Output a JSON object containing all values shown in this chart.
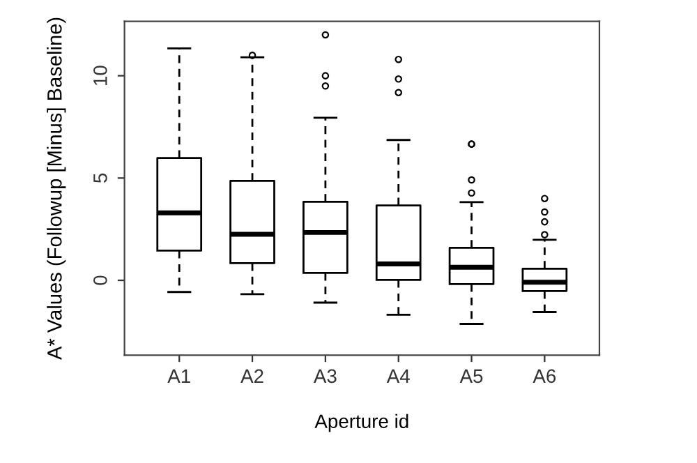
{
  "chart_data": {
    "type": "box",
    "xlabel": "Aperture id",
    "ylabel": "A* Values (Followup [Minus] Baseline)",
    "categories": [
      "A1",
      "A2",
      "A3",
      "A4",
      "A5",
      "A6"
    ],
    "boxes": [
      {
        "low": -0.57,
        "q1": 1.45,
        "median": 3.3,
        "q3": 5.98,
        "high": 11.34
      },
      {
        "low": -0.68,
        "q1": 0.84,
        "median": 2.25,
        "q3": 4.86,
        "high": 10.9,
        "outliers": [
          11.0
        ]
      },
      {
        "low": -1.09,
        "q1": 0.36,
        "median": 2.34,
        "q3": 3.84,
        "high": 7.95,
        "outliers": [
          9.5,
          10.0,
          12.0
        ]
      },
      {
        "low": -1.68,
        "q1": 0.02,
        "median": 0.8,
        "q3": 3.66,
        "high": 6.86,
        "outliers": [
          9.18,
          9.84,
          10.8
        ]
      },
      {
        "low": -2.13,
        "q1": -0.18,
        "median": 0.64,
        "q3": 1.59,
        "high": 3.82,
        "outliers": [
          4.27,
          4.91,
          6.66,
          6.66
        ]
      },
      {
        "low": -1.55,
        "q1": -0.52,
        "median": -0.09,
        "q3": 0.57,
        "high": 1.98,
        "outliers": [
          2.23,
          2.86,
          3.34,
          4.0
        ]
      }
    ],
    "ylim": [
      -3.66,
      12.66
    ],
    "yticks": [
      0,
      5,
      10
    ],
    "grid": false,
    "legend": false
  }
}
